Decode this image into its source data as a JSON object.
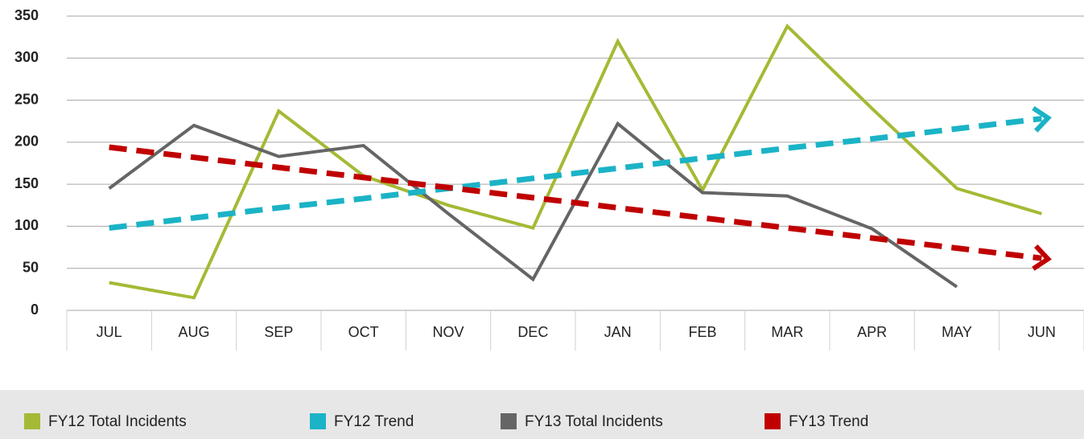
{
  "chart_data": {
    "type": "line",
    "categories": [
      "JUL",
      "AUG",
      "SEP",
      "OCT",
      "NOV",
      "DEC",
      "JAN",
      "FEB",
      "MAR",
      "APR",
      "MAY",
      "JUN"
    ],
    "series": [
      {
        "name": "FY12 Total Incidents",
        "color": "#a6b935",
        "style": "solid",
        "values": [
          33,
          15,
          237,
          160,
          125,
          98,
          320,
          143,
          338,
          240,
          145,
          115
        ]
      },
      {
        "name": "FY12 Trend",
        "color": "#1bb3c6",
        "style": "dashed",
        "arrow": true,
        "values": [
          98,
          110,
          122,
          133,
          145,
          157,
          169,
          181,
          193,
          204,
          216,
          228
        ]
      },
      {
        "name": "FY13 Total Incidents",
        "color": "#656565",
        "style": "solid",
        "values": [
          145,
          220,
          183,
          196,
          115,
          37,
          222,
          140,
          136,
          97,
          28,
          null
        ]
      },
      {
        "name": "FY13 Trend",
        "color": "#c00000",
        "style": "dashed",
        "arrow": true,
        "values": [
          194,
          182,
          170,
          158,
          146,
          134,
          122,
          110,
          98,
          86,
          74,
          62
        ]
      }
    ],
    "ylim": [
      0,
      350
    ],
    "yticks": [
      0,
      50,
      100,
      150,
      200,
      250,
      300,
      350
    ],
    "grid": true,
    "legend": "bottom"
  }
}
